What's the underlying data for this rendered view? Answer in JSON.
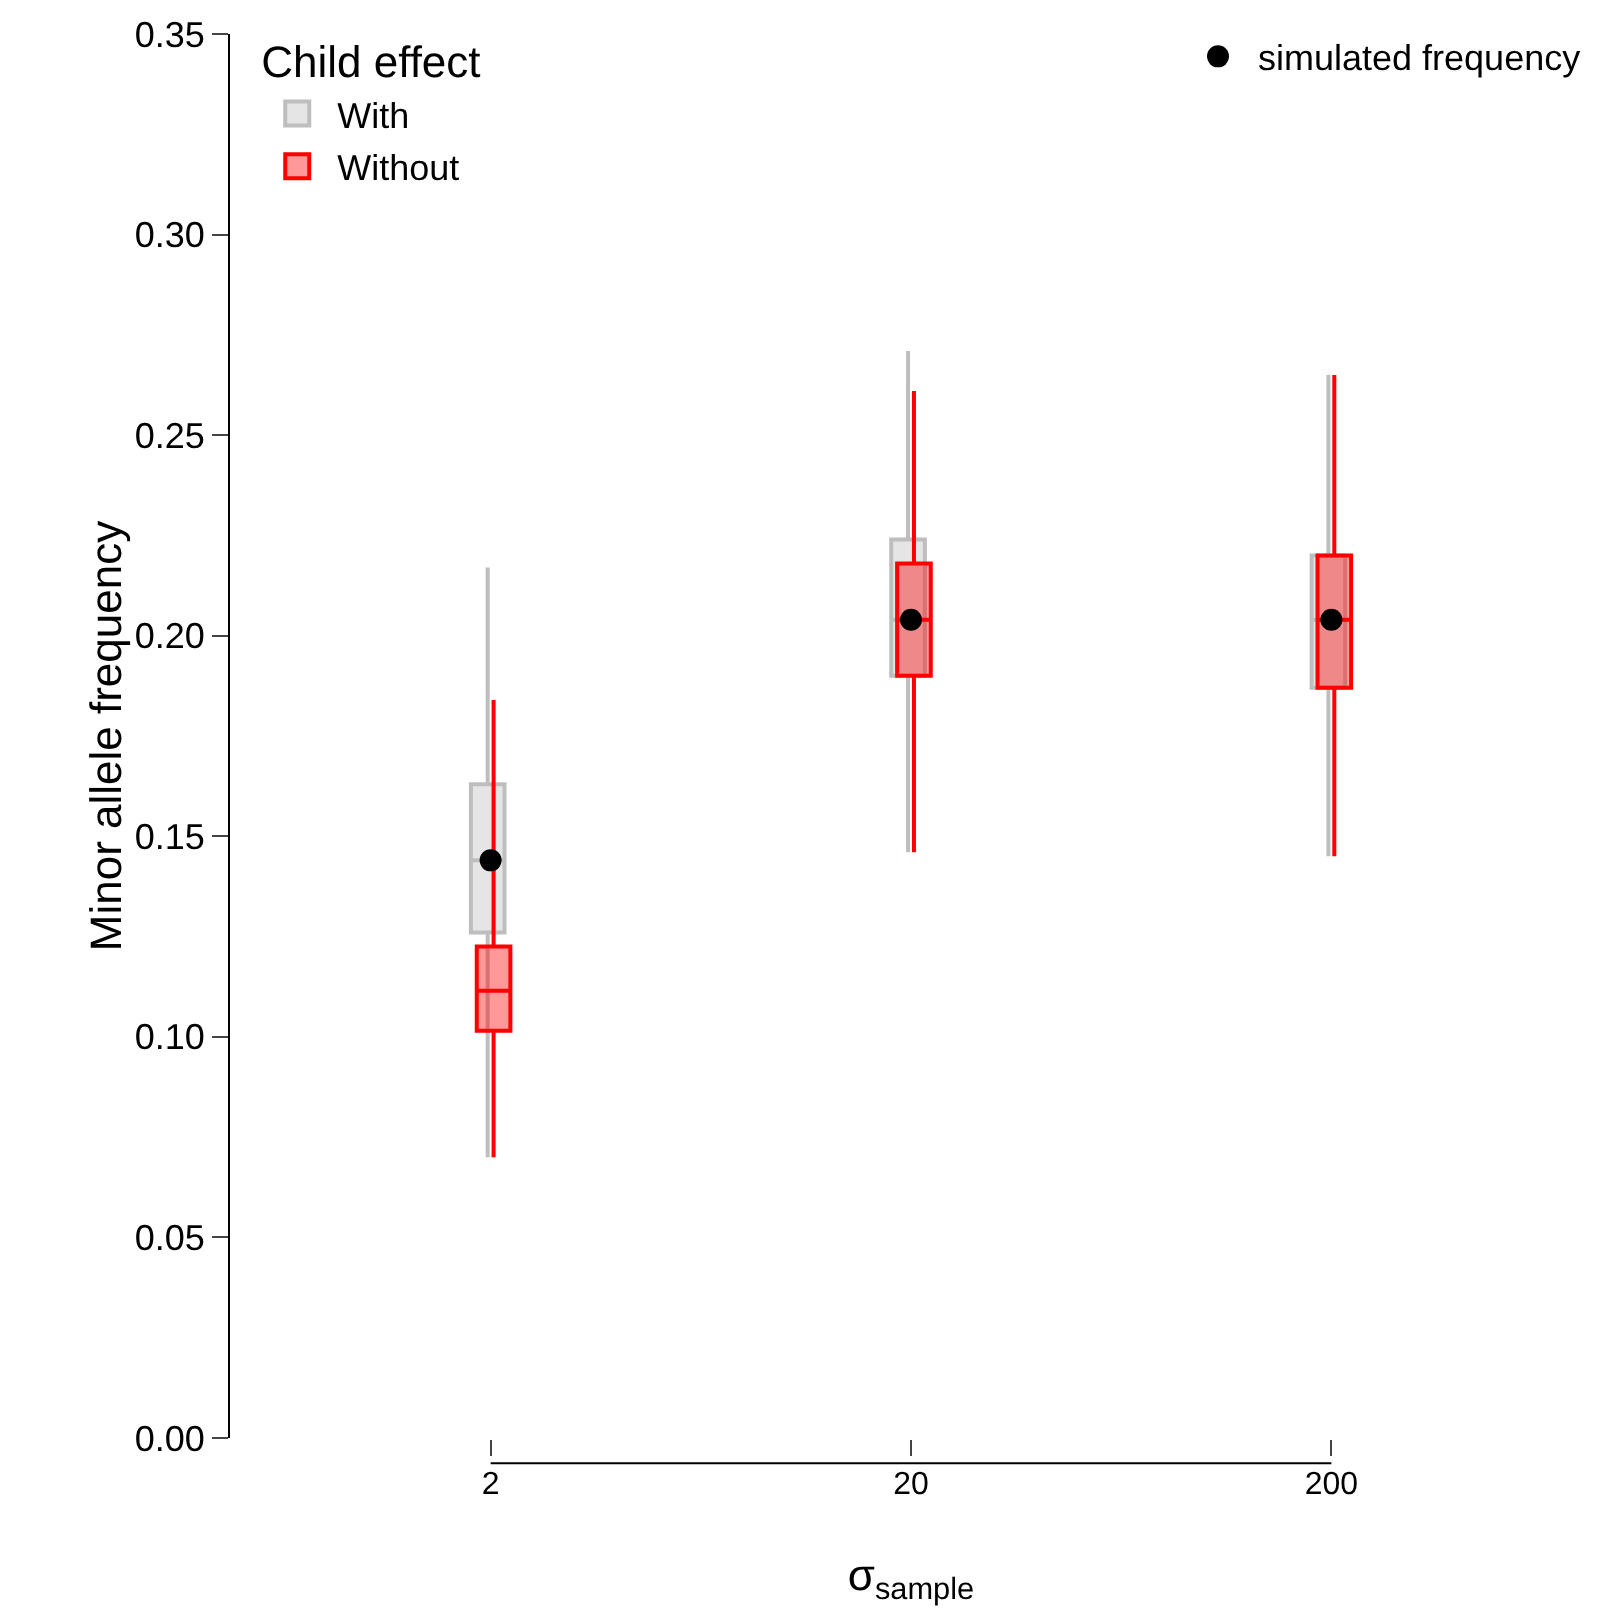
{
  "chart_data": {
    "type": "box",
    "xlabel": "σ$_{sample}$",
    "ylabel": "Minor allele frequency",
    "legend_title": "Child effect",
    "legend": "top left",
    "categories": [
      "2",
      "20",
      "200"
    ],
    "ylim": [
      0,
      0.35
    ],
    "yticks": [
      {
        "value": 0,
        "label": "0.00"
      },
      {
        "value": 0.05,
        "label": "0.05"
      },
      {
        "value": 0.1,
        "label": "0.10"
      },
      {
        "value": 0.15,
        "label": "0.15"
      },
      {
        "value": 0.2,
        "label": "0.20"
      },
      {
        "value": 0.25,
        "label": "0.25"
      },
      {
        "value": 0.3,
        "label": "0.30"
      },
      {
        "value": 0.35,
        "label": "0.35"
      }
    ],
    "grid": false,
    "series": [
      {
        "name": "With",
        "color": "#bebebe",
        "boxes": [
          {
            "low": 0.07,
            "q1": 0.126,
            "median": 0.144,
            "q3": 0.163,
            "high": 0.217
          },
          {
            "low": 0.146,
            "q1": 0.19,
            "median": 0.204,
            "q3": 0.224,
            "high": 0.271
          },
          {
            "low": 0.145,
            "q1": 0.187,
            "median": 0.204,
            "q3": 0.22,
            "high": 0.265
          }
        ]
      },
      {
        "name": "Without",
        "color": "#ff0000",
        "boxes": [
          {
            "low": 0.07,
            "q1": 0.1015,
            "median": 0.1115,
            "q3": 0.1225,
            "high": 0.184
          },
          {
            "low": 0.146,
            "q1": 0.19,
            "median": 0.204,
            "q3": 0.218,
            "high": 0.261
          },
          {
            "low": 0.145,
            "q1": 0.187,
            "median": 0.204,
            "q3": 0.22,
            "high": 0.265
          }
        ]
      },
      {
        "name": "simulated frequency",
        "type": "scatter",
        "marker": "circle",
        "color": "#000000",
        "x": [
          "2",
          "20",
          "200"
        ],
        "values": [
          0.144,
          0.204,
          0.204
        ]
      }
    ]
  }
}
